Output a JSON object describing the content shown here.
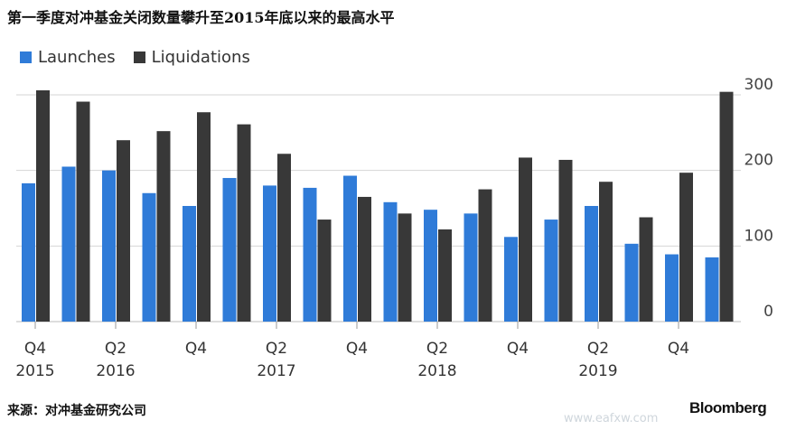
{
  "title": "第一季度对冲基金关闭数量攀升至2015年底以来的最高水平",
  "source": "来源：对冲基金研究公司",
  "brand": "Bloomberg",
  "watermark": "www.eafxw.com",
  "colors": {
    "launches": "#2f7bd8",
    "liquidations": "#383838",
    "grid": "#d6d6d6"
  },
  "chart_data": {
    "type": "bar",
    "categories": [
      "Q4 2015",
      "Q1 2016",
      "Q2 2016",
      "Q3 2016",
      "Q4 2016",
      "Q1 2017",
      "Q2 2017",
      "Q3 2017",
      "Q4 2017",
      "Q1 2018",
      "Q2 2018",
      "Q3 2018",
      "Q4 2018",
      "Q1 2019",
      "Q2 2019",
      "Q3 2019",
      "Q4 2019",
      "Q1 2020"
    ],
    "x_tick_labels": [
      {
        "index": 0,
        "quarter": "Q4",
        "year": "2015"
      },
      {
        "index": 2,
        "quarter": "Q2",
        "year": "2016"
      },
      {
        "index": 4,
        "quarter": "Q4",
        "year": ""
      },
      {
        "index": 6,
        "quarter": "Q2",
        "year": "2017"
      },
      {
        "index": 8,
        "quarter": "Q4",
        "year": ""
      },
      {
        "index": 10,
        "quarter": "Q2",
        "year": "2018"
      },
      {
        "index": 12,
        "quarter": "Q4",
        "year": ""
      },
      {
        "index": 14,
        "quarter": "Q2",
        "year": "2019"
      },
      {
        "index": 16,
        "quarter": "Q4",
        "year": ""
      }
    ],
    "series": [
      {
        "name": "Launches",
        "values": [
          183,
          205,
          200,
          170,
          153,
          190,
          180,
          177,
          193,
          158,
          148,
          143,
          112,
          135,
          153,
          103,
          89,
          85
        ]
      },
      {
        "name": "Liquidations",
        "values": [
          306,
          291,
          240,
          252,
          277,
          261,
          222,
          135,
          165,
          143,
          122,
          175,
          217,
          214,
          185,
          138,
          197,
          304
        ]
      }
    ],
    "yticks": [
      0,
      100,
      200,
      300
    ],
    "ylim": [
      0,
      320
    ],
    "legend_position": "top-left",
    "grid": true
  }
}
